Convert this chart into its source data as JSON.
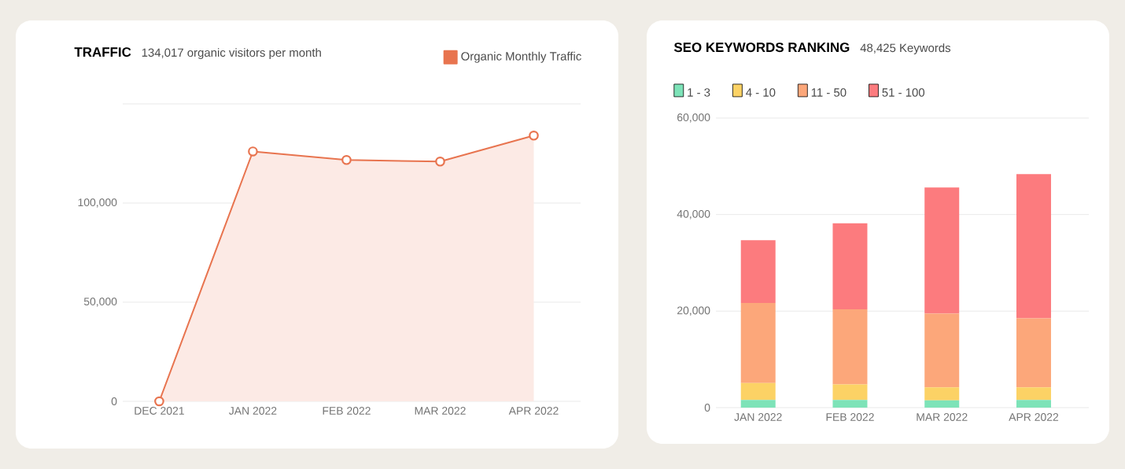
{
  "chart_data": [
    {
      "type": "area",
      "title": "TRAFFIC",
      "subtitle": "134,017 organic visitors per month",
      "categories": [
        "DEC 2021",
        "JAN 2022",
        "FEB 2022",
        "MAR 2022",
        "APR 2022"
      ],
      "series": [
        {
          "name": "Organic Monthly Traffic",
          "color": "#e8744f",
          "values": [
            0,
            126000,
            121700,
            120900,
            134000
          ]
        }
      ],
      "ylim": [
        0,
        150000
      ],
      "yticks": [
        0,
        {
          "value": 50000,
          "label": "50,000"
        },
        {
          "value": 100000,
          "label": "100,000"
        },
        {
          "value": 150000,
          "label": null
        }
      ],
      "grid": "y",
      "legend": "top right",
      "marker": "circle"
    },
    {
      "type": "bar",
      "stacked": true,
      "title": "SEO KEYWORDS RANKING",
      "subtitle": "48,425 Keywords",
      "categories": [
        "JAN 2022",
        "FEB 2022",
        "MAR 2022",
        "APR 2022"
      ],
      "series": [
        {
          "name": "1 - 3",
          "color": "#7de3b8",
          "values": [
            1600,
            1600,
            1500,
            1600
          ]
        },
        {
          "name": "4 - 10",
          "color": "#fcd265",
          "values": [
            3500,
            3200,
            2700,
            2600
          ]
        },
        {
          "name": "11 - 50",
          "color": "#fca77a",
          "values": [
            16600,
            15600,
            15300,
            14300
          ]
        },
        {
          "name": "51 - 100",
          "color": "#fc7b7e",
          "values": [
            13000,
            17800,
            26100,
            29900
          ]
        }
      ],
      "ylim": [
        0,
        60000
      ],
      "yticks": [
        0,
        {
          "value": 20000,
          "label": "20,000"
        },
        {
          "value": 40000,
          "label": "40,000"
        },
        {
          "value": 60000,
          "label": "60,000"
        }
      ],
      "grid": "y",
      "legend": "top left"
    }
  ]
}
